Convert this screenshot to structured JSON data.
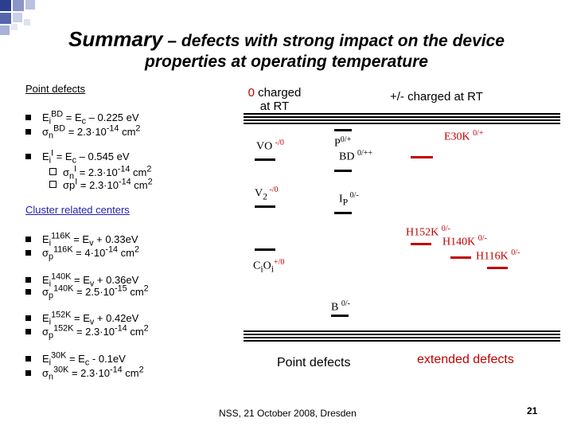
{
  "title": {
    "line1a": "Summary",
    "line1b": " – defects with strong impact on the device",
    "line2": "properties at operating temperature"
  },
  "left": {
    "point_header": "Point defects",
    "point": [
      "E<sub>i</sub><sup>BD</sup> = E<sub>c</sub> – 0.225 eV",
      "σ<sub>n</sub><sup>BD</sup> = 2.3·10<sup>-14</sup> cm<sup>2</sup>",
      "E<sub>i</sub><sup>I</sup> = E<sub>c</sub> – 0.545 eV"
    ],
    "point_sub": [
      "σ<sub>n</sub><sup>I</sup> = 2.3·10<sup>-14</sup> cm<sup>2</sup>",
      "σp<sup>I</sup> = 2.3·10<sup>-14</sup> cm<sup>2</sup>"
    ],
    "cluster_header": "Cluster related centers",
    "cluster": [
      "E<sub>i</sub><sup>116K</sup> = E<sub>v</sub> + 0.33eV",
      "σ<sub>p</sub><sup>116K</sup> = 4·10<sup>-14</sup> cm<sup>2</sup>",
      "E<sub>i</sub><sup>140K</sup> = E<sub>v</sub> + 0.36eV",
      "σ<sub>p</sub><sup>140K</sup> = 2.5·10<sup>-15</sup> cm<sup>2</sup>",
      "E<sub>i</sub><sup>152K</sup> = E<sub>v</sub> + 0.42eV",
      "σ<sub>p</sub><sup>152K</sup> = 2.3·10<sup>-14</sup> cm<sup>2</sup>",
      "E<sub>i</sub><sup>30K</sup> = E<sub>c</sub> - 0.1eV",
      "σ<sub>n</sub><sup>30K</sup> = 2.3·10<sup>-14</sup> cm<sup>2</sup>"
    ]
  },
  "diagram": {
    "header_left_1": "0",
    "header_left_2": " charged",
    "header_left_3": "at RT",
    "header_right": "+/- charged at RT",
    "vo": "VO ",
    "vo_sup": "-/0",
    "v2": "V",
    "v2_sub": "2",
    "v2_sup": " -/0",
    "coi": "C",
    "coi_mid": "O",
    "coi_sup": "+/0",
    "p": "P",
    "p_sup": "0/+",
    "bd": "BD ",
    "bd_sup": "0/++",
    "ip": "I",
    "ip_sub": "P",
    "ip_sup": " 0/-",
    "b": "B ",
    "b_sup": "0/-",
    "e30k": "E30K ",
    "e30k_sup": "0/+",
    "h152k": "H152K ",
    "h152k_sup": "0/-",
    "h140k": "H140K ",
    "h140k_sup": "0/-",
    "h116k": "H116K ",
    "h116k_sup": "0/-",
    "label_point": "Point defects",
    "label_extended": "extended defects"
  },
  "footer": "NSS, 21 October 2008, Dresden",
  "page_number": "21"
}
